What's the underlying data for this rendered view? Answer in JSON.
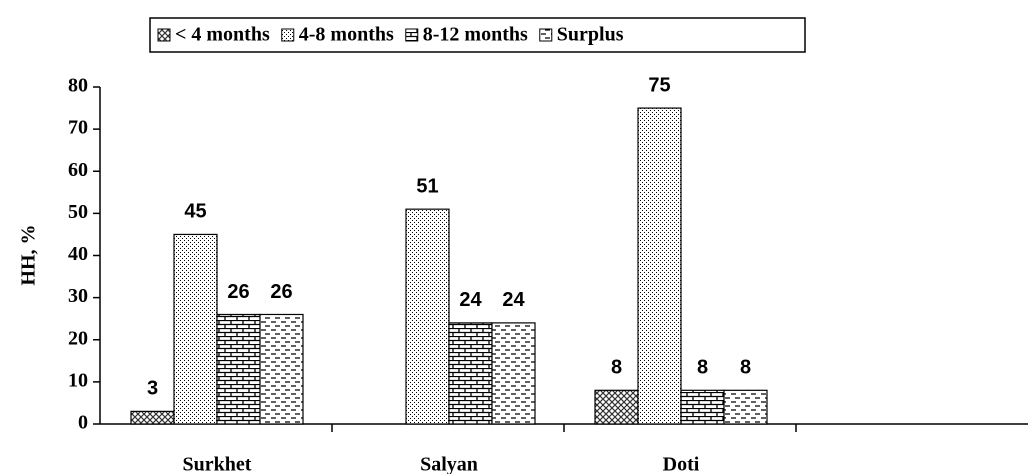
{
  "chart_data": {
    "type": "bar",
    "y_label": "HH, %",
    "categories": [
      "Surkhet",
      "Salyan",
      "Doti",
      null
    ],
    "series": [
      {
        "name": "< 4 months",
        "values": [
          3,
          null,
          8,
          null
        ]
      },
      {
        "name": "4-8 months",
        "values": [
          45,
          51,
          75,
          null
        ]
      },
      {
        "name": "8-12 months",
        "values": [
          26,
          24,
          8,
          null
        ]
      },
      {
        "name": "Surplus",
        "values": [
          26,
          24,
          8,
          null
        ]
      }
    ],
    "ylim": [
      0,
      80
    ],
    "yticks": [
      0,
      10,
      20,
      30,
      40,
      50,
      60,
      70,
      80
    ],
    "legend": "top",
    "grid": false
  }
}
